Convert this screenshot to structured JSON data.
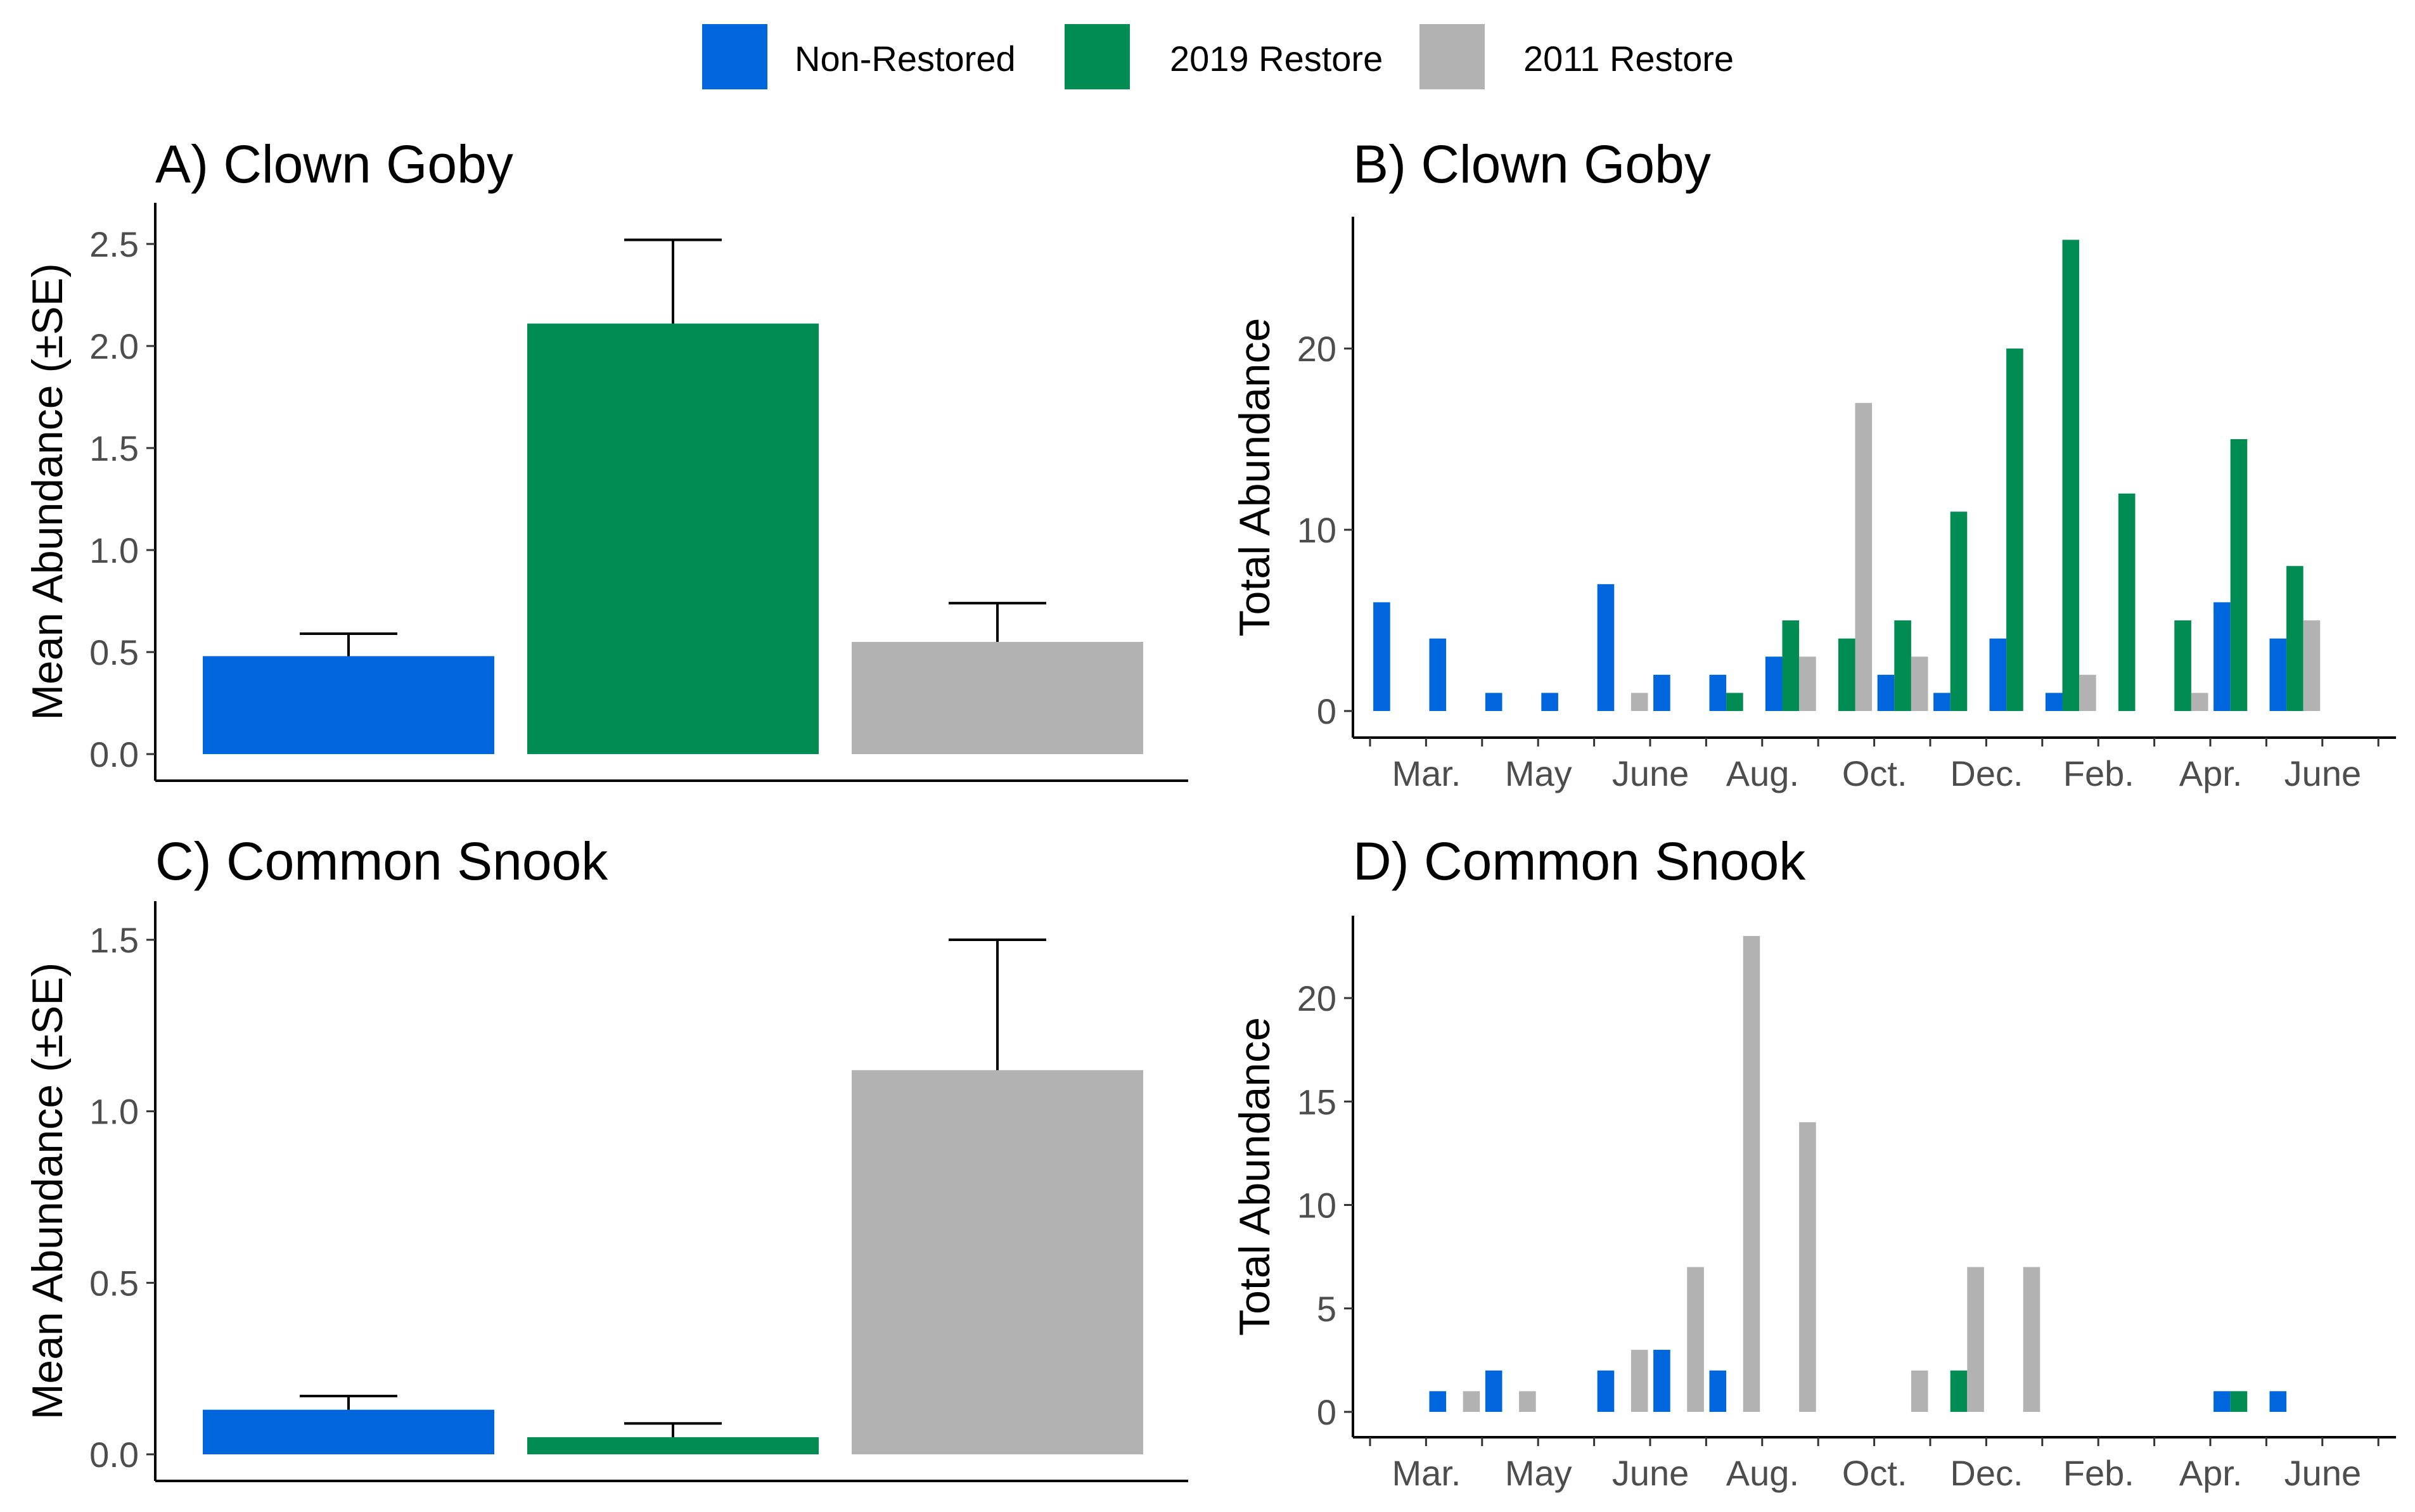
{
  "legend": {
    "position": "top",
    "entries": [
      {
        "label": "Non-Restored",
        "color": "#0066dd"
      },
      {
        "label": "2019 Restore",
        "color": "#008c52"
      },
      {
        "label": "2011 Restore",
        "color": "#b2b2b2"
      }
    ]
  },
  "chart_data": [
    {
      "id": "A",
      "type": "bar",
      "title": "A) Clown Goby",
      "ylabel": "Mean Abundance (±SE)",
      "xlabel": "",
      "ylim": [
        0,
        2.6
      ],
      "yticks": [
        0,
        0.5,
        1,
        1.5,
        2,
        2.5
      ],
      "ytick_labels": [
        "0.0",
        "0.5",
        "1.0",
        "1.5",
        "2.0",
        "2.5"
      ],
      "grid": false,
      "categories": [
        "Non-Restored",
        "2019 Restore",
        "2011 Restore"
      ],
      "values": [
        0.48,
        2.11,
        0.55
      ],
      "se": [
        0.11,
        0.41,
        0.19
      ]
    },
    {
      "id": "B",
      "type": "bar",
      "title": "B) Clown Goby",
      "ylabel": "Total Abundance",
      "xlabel": "",
      "ylim": [
        0,
        27
      ],
      "yticks": [
        0,
        10,
        20
      ],
      "ytick_labels": [
        "0",
        "10",
        "20"
      ],
      "grid": false,
      "x_tick_labels": [
        "Mar.",
        "May",
        "June",
        "Aug.",
        "Oct.",
        "Dec.",
        "Feb.",
        "Apr.",
        "June"
      ],
      "series": [
        {
          "name": "Non-Restored",
          "values": [
            6,
            4,
            1,
            1,
            7,
            2,
            2,
            3,
            0,
            2,
            1,
            4,
            1,
            0,
            0,
            6,
            4
          ]
        },
        {
          "name": "2019 Restore",
          "values": [
            0,
            0,
            0,
            0,
            0,
            0,
            1,
            5,
            4,
            5,
            11,
            20,
            26,
            12,
            5,
            15,
            8
          ]
        },
        {
          "name": "2011 Restore",
          "values": [
            0,
            0,
            0,
            0,
            1,
            0,
            0,
            3,
            17,
            3,
            0,
            0,
            2,
            0,
            1,
            0,
            5
          ]
        }
      ]
    },
    {
      "id": "C",
      "type": "bar",
      "title": "C) Common Snook",
      "ylabel": "Mean Abundance (±SE)",
      "xlabel": "",
      "ylim": [
        0,
        1.55
      ],
      "yticks": [
        0,
        0.5,
        1,
        1.5
      ],
      "ytick_labels": [
        "0.0",
        "0.5",
        "1.0",
        "1.5"
      ],
      "grid": false,
      "categories": [
        "Non-Restored",
        "2019 Restore",
        "2011 Restore"
      ],
      "values": [
        0.13,
        0.05,
        1.12
      ],
      "se": [
        0.04,
        0.04,
        0.38
      ]
    },
    {
      "id": "D",
      "type": "bar",
      "title": "D) Common Snook",
      "ylabel": "Total Abundance",
      "xlabel": "",
      "ylim": [
        0,
        24
      ],
      "yticks": [
        0,
        5,
        10,
        15,
        20
      ],
      "ytick_labels": [
        "0",
        "5",
        "10",
        "15",
        "20"
      ],
      "grid": false,
      "x_tick_labels": [
        "Mar.",
        "May",
        "June",
        "Aug.",
        "Oct.",
        "Dec.",
        "Feb.",
        "Apr.",
        "June"
      ],
      "series": [
        {
          "name": "Non-Restored",
          "values": [
            0,
            1,
            2,
            0,
            2,
            3,
            2,
            0,
            0,
            0,
            0,
            0,
            0,
            0,
            0,
            1,
            1
          ]
        },
        {
          "name": "2019 Restore",
          "values": [
            0,
            0,
            0,
            0,
            0,
            0,
            0,
            0,
            0,
            0,
            2,
            0,
            0,
            0,
            0,
            1,
            0
          ]
        },
        {
          "name": "2011 Restore",
          "values": [
            0,
            1,
            1,
            0,
            3,
            7,
            23,
            14,
            0,
            2,
            7,
            7,
            0,
            0,
            0,
            0,
            0
          ]
        }
      ]
    }
  ]
}
